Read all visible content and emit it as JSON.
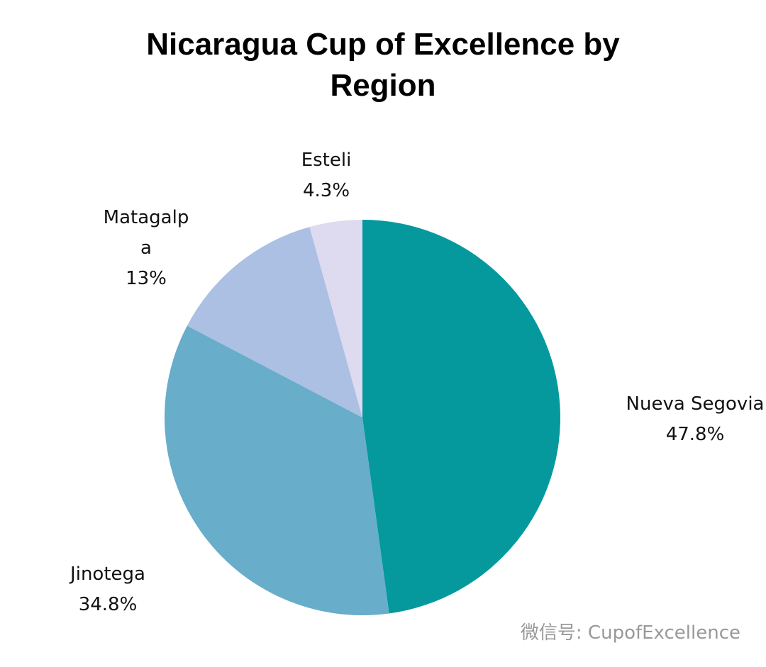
{
  "chart_data": {
    "type": "pie",
    "title": "Nicaragua Cup of Excellence by Region",
    "categories": [
      "Nueva Segovia",
      "Jinotega",
      "Matagalpa",
      "Esteli"
    ],
    "values": [
      47.8,
      34.8,
      13,
      4.3
    ],
    "value_labels": [
      "47.8%",
      "34.8%",
      "13%",
      "4.3%"
    ],
    "colors": [
      "#05999e",
      "#68adc9",
      "#abc0e2",
      "#dedaf0"
    ],
    "watermark": "微信号: CupofExcellence"
  }
}
